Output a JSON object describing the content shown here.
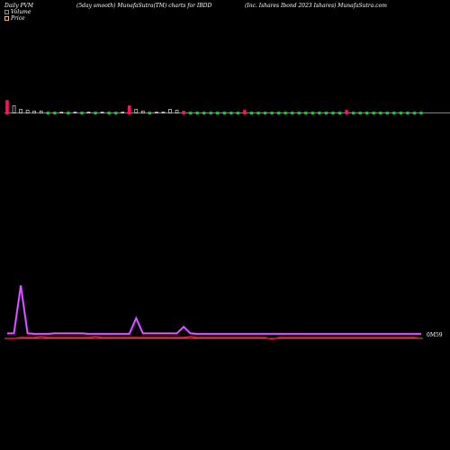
{
  "header": {
    "left": "Daily PVM",
    "center": "(5day smooth) MunafaSutra(TM) charts for IBDD",
    "right": "(Inc. Ishares Ibond 2023 Ishares) MunafaSutra.com"
  },
  "legend": {
    "volume": {
      "label": "Volume",
      "color": "#ff44ff"
    },
    "price": {
      "label": "Price",
      "color": "#ffb080"
    }
  },
  "last_value_label": "0M59",
  "colors": {
    "background": "#000000",
    "volume_line": "#b040ff",
    "volume_line_light": "#ff60ff",
    "price_line": "#ff1020",
    "axis": "#ffffff",
    "bar_up": "#22cc44",
    "bar_down": "#ff1060",
    "bar_hollow": "#ffffff"
  },
  "chart_data": {
    "type": "line",
    "title": "(5day smooth) MunafaSutra(TM) charts for IBDD",
    "xlabel": "",
    "ylabel": "",
    "grid": false,
    "legend_position": "top-left",
    "x": [
      1,
      2,
      3,
      4,
      5,
      6,
      7,
      8,
      9,
      10,
      11,
      12,
      13,
      14,
      15,
      16,
      17,
      18,
      19,
      20,
      21,
      22,
      23,
      24,
      25,
      26,
      27,
      28,
      29,
      30,
      31,
      32,
      33,
      34,
      35,
      36,
      37,
      38,
      39,
      40,
      41,
      42,
      43,
      44,
      45,
      46,
      47,
      48,
      49,
      50,
      51,
      52,
      53,
      54,
      55,
      56,
      57,
      58,
      59,
      60,
      61,
      62
    ],
    "series": [
      {
        "name": "Volume",
        "values": [
          1.0,
          1.0,
          10.5,
          1.0,
          0.9,
          0.9,
          0.9,
          1.0,
          1.0,
          1.0,
          1.0,
          1.0,
          0.9,
          0.9,
          0.9,
          0.9,
          0.9,
          0.9,
          0.9,
          4.0,
          1.0,
          1.0,
          1.0,
          1.0,
          1.0,
          1.0,
          2.3,
          1.0,
          0.9,
          0.9,
          0.9,
          0.9,
          0.9,
          0.9,
          0.9,
          0.9,
          0.9,
          0.9,
          0.9,
          0.9,
          0.9,
          0.9,
          0.9,
          0.9,
          0.9,
          0.9,
          0.9,
          0.9,
          0.9,
          0.9,
          0.9,
          0.9,
          0.9,
          0.9,
          0.9,
          0.9,
          0.9,
          0.9,
          0.9,
          0.9,
          0.9,
          0.9
        ]
      },
      {
        "name": "Price",
        "values": [
          0.59,
          0.59,
          0.6,
          0.6,
          0.6,
          0.61,
          0.6,
          0.6,
          0.6,
          0.6,
          0.6,
          0.6,
          0.6,
          0.61,
          0.6,
          0.6,
          0.6,
          0.6,
          0.6,
          0.6,
          0.6,
          0.6,
          0.6,
          0.6,
          0.6,
          0.6,
          0.6,
          0.61,
          0.6,
          0.6,
          0.6,
          0.6,
          0.6,
          0.6,
          0.6,
          0.6,
          0.6,
          0.6,
          0.6,
          0.58,
          0.6,
          0.6,
          0.6,
          0.6,
          0.6,
          0.6,
          0.6,
          0.6,
          0.6,
          0.6,
          0.6,
          0.6,
          0.6,
          0.6,
          0.6,
          0.6,
          0.6,
          0.6,
          0.6,
          0.6,
          0.6,
          0.59
        ]
      }
    ],
    "bars": {
      "heights": [
        14,
        8,
        4,
        3,
        2,
        2,
        1,
        1,
        1,
        1,
        1,
        1,
        1,
        1,
        1,
        1,
        1,
        1,
        8,
        4,
        2,
        1,
        1,
        1,
        4,
        3,
        2,
        1,
        1,
        1,
        1,
        1,
        1,
        1,
        1,
        3,
        1,
        1,
        1,
        1,
        1,
        1,
        1,
        1,
        1,
        1,
        1,
        1,
        1,
        1,
        3,
        1,
        1,
        1,
        1,
        1,
        1,
        1,
        1,
        1,
        1,
        1
      ],
      "types": [
        "down",
        "hollow",
        "hollow",
        "hollow",
        "hollow",
        "hollow",
        "up",
        "up",
        "hollow",
        "up",
        "hollow",
        "up",
        "hollow",
        "up",
        "hollow",
        "up",
        "up",
        "hollow",
        "down",
        "hollow",
        "hollow",
        "up",
        "hollow",
        "hollow",
        "hollow",
        "hollow",
        "down",
        "up",
        "up",
        "up",
        "up",
        "up",
        "up",
        "up",
        "up",
        "down",
        "up",
        "up",
        "up",
        "up",
        "up",
        "up",
        "up",
        "up",
        "up",
        "up",
        "up",
        "up",
        "up",
        "up",
        "down",
        "up",
        "up",
        "up",
        "up",
        "up",
        "up",
        "up",
        "up",
        "up",
        "up",
        "up"
      ]
    }
  }
}
